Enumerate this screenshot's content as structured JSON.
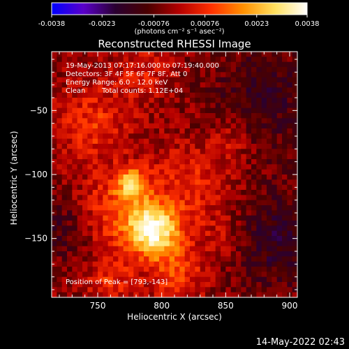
{
  "chart_data": {
    "type": "heatmap",
    "title": "Reconstructed RHESSI Image",
    "xlabel": "Heliocentric X (arcsec)",
    "ylabel": "Heliocentric Y (arcsec)",
    "xlim": [
      714,
      906
    ],
    "ylim": [
      -196,
      -4
    ],
    "x_ticks": [
      750,
      800,
      850,
      900
    ],
    "y_ticks": [
      -50,
      -100,
      -150
    ],
    "colorbar": {
      "range": [
        -0.0038,
        0.0038
      ],
      "tick_labels": [
        "-0.0038",
        "-0.0023",
        "-0.00076",
        "0.00076",
        "0.0023",
        "0.0038"
      ],
      "unit": "(photons cm⁻² s⁻¹ asec⁻²)",
      "stops": [
        "#0000ff",
        "#5a00c8",
        "#2a0030",
        "#4a0000",
        "#b40000",
        "#ff3000",
        "#ff9000",
        "#ffe060",
        "#ffffff"
      ]
    },
    "annotations": {
      "time_range": "19-May-2013 07:17:16.000 to 07:19:40.000",
      "detectors": "Detectors: 3F 4F 5F 6F 7F 8F, Att 0",
      "energy": "Energy Range: 6.0 - 12.0 keV",
      "method": "Clean",
      "counts": "Total counts: 1.12E+04",
      "peak": "Position of Peak = [793,-143]"
    },
    "peak": {
      "x": 793,
      "y": -143,
      "value": 0.0038
    },
    "sources": [
      {
        "x": 793,
        "y": -143,
        "amplitude": 0.0038,
        "sigma_arcsec": 14
      },
      {
        "x": 776,
        "y": -107,
        "amplitude": 0.0024,
        "sigma_arcsec": 9
      },
      {
        "x": 760,
        "y": -130,
        "amplitude": 0.0013,
        "sigma_arcsec": 22
      },
      {
        "x": 825,
        "y": -110,
        "amplitude": 0.0011,
        "sigma_arcsec": 25
      },
      {
        "x": 745,
        "y": -60,
        "amplitude": 0.0012,
        "sigma_arcsec": 20
      },
      {
        "x": 785,
        "y": -20,
        "amplitude": 0.0009,
        "sigma_arcsec": 16
      },
      {
        "x": 812,
        "y": -175,
        "amplitude": 0.0014,
        "sigma_arcsec": 16
      },
      {
        "x": 760,
        "y": -183,
        "amplitude": 0.0011,
        "sigma_arcsec": 13
      },
      {
        "x": 855,
        "y": -70,
        "amplitude": 0.0007,
        "sigma_arcsec": 12
      },
      {
        "x": 850,
        "y": -150,
        "amplitude": 0.0006,
        "sigma_arcsec": 12
      },
      {
        "x": 890,
        "y": -150,
        "amplitude": -0.0012,
        "sigma_arcsec": 28
      },
      {
        "x": 880,
        "y": -40,
        "amplitude": -0.001,
        "sigma_arcsec": 30
      },
      {
        "x": 725,
        "y": -140,
        "amplitude": -0.001,
        "sigma_arcsec": 18
      }
    ],
    "pixel_size_arcsec": 4
  },
  "footer": {
    "timestamp": "14-May-2022 02:43"
  }
}
